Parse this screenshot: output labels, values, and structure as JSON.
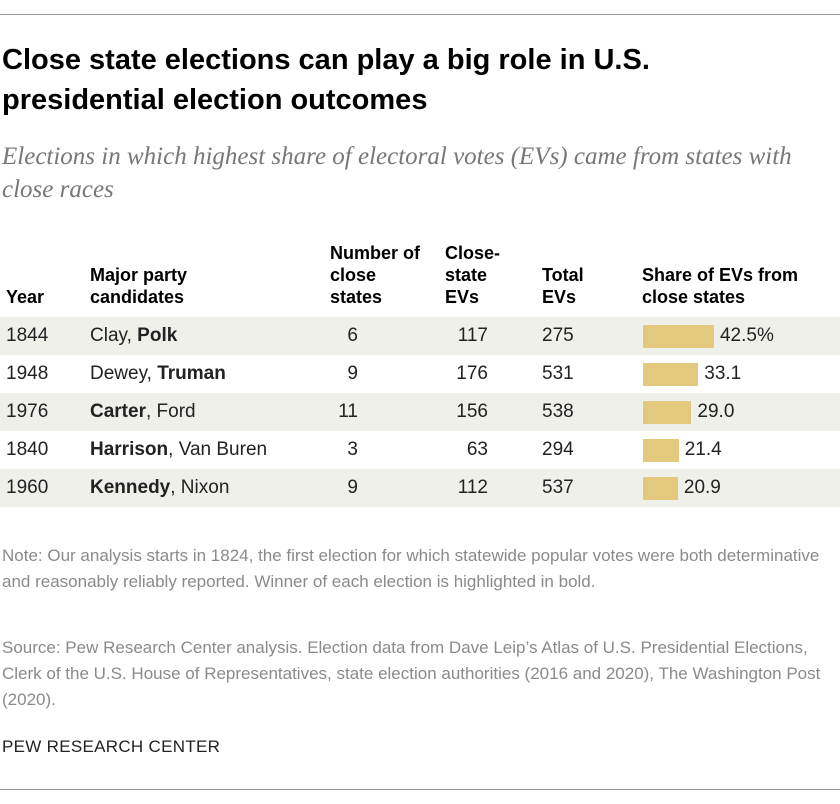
{
  "header": {
    "title": "Close state elections can play a big role in U.S. presidential election outcomes",
    "subtitle": "Elections in which highest share of electoral votes (EVs) came from states with close races"
  },
  "table": {
    "columns": {
      "year": "Year",
      "candidates": "Major party candidates",
      "close_states": "Number of close states",
      "close_evs": "Close-state EVs",
      "total_evs": "Total EVs",
      "share": "Share of EVs from close states"
    },
    "bar_color": "#e2c97e",
    "rows": [
      {
        "year": "1844",
        "candidates": [
          {
            "text": "Clay, ",
            "bold": false
          },
          {
            "text": "Polk",
            "bold": true
          }
        ],
        "close_states": 6,
        "close_evs": 117,
        "total_evs": 275,
        "share": 42.5,
        "share_label": "42.5%"
      },
      {
        "year": "1948",
        "candidates": [
          {
            "text": "Dewey, ",
            "bold": false
          },
          {
            "text": "Truman",
            "bold": true
          }
        ],
        "close_states": 9,
        "close_evs": 176,
        "total_evs": 531,
        "share": 33.1
      },
      {
        "year": "1976",
        "candidates": [
          {
            "text": "Carter",
            "bold": true
          },
          {
            "text": ", Ford",
            "bold": false
          }
        ],
        "close_states": 11,
        "close_evs": 156,
        "total_evs": 538,
        "share": 29.0,
        "share_label": "29.0"
      },
      {
        "year": "1840",
        "candidates": [
          {
            "text": "Harrison",
            "bold": true
          },
          {
            "text": ", Van Buren",
            "bold": false
          }
        ],
        "close_states": 3,
        "close_evs": 63,
        "total_evs": 294,
        "share": 21.4
      },
      {
        "year": "1960",
        "candidates": [
          {
            "text": "Kennedy",
            "bold": true
          },
          {
            "text": ", Nixon",
            "bold": false
          }
        ],
        "close_states": 9,
        "close_evs": 112,
        "total_evs": 537,
        "share": 20.9
      }
    ]
  },
  "note": "Note: Our analysis starts in 1824, the first election for which statewide popular votes were both determinative and reasonably reliably reported. Winner of each election is highlighted in bold.",
  "source": "Source: Pew Research Center analysis. Election data from Dave Leip’s Atlas of U.S. Presidential Elections, Clerk of the U.S. House of Representatives, state election authorities (2016 and 2020), The Washington Post (2020).",
  "footer": "PEW RESEARCH CENTER"
}
